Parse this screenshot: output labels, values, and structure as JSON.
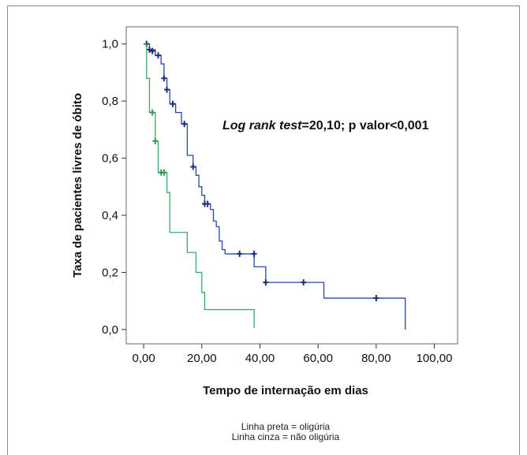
{
  "chart_data": {
    "type": "line",
    "title": "",
    "xlabel": "Tempo de internação em dias",
    "ylabel": "Taxa de pacientes livres de óbito",
    "xlim": [
      -6,
      108
    ],
    "ylim": [
      -0.05,
      1.06
    ],
    "x_ticks": [
      0,
      20,
      40,
      60,
      80,
      100
    ],
    "x_tick_labels": [
      "0,00",
      "20,00",
      "40,00",
      "60,00",
      "80,00",
      "100,00"
    ],
    "y_ticks": [
      0,
      0.2,
      0.4,
      0.6,
      0.8,
      1.0
    ],
    "y_tick_labels": [
      "0,0",
      "0,2",
      "0,4",
      "0,6",
      "0,8",
      "1,0"
    ],
    "grid": false,
    "annotation": {
      "text_italic": "Log rank test",
      "text_rest": "=20,10; p valor<0,001"
    },
    "legend_lines": [
      "Linha preta = oligúria",
      "Linha cinza = não oligúria"
    ],
    "colors": {
      "series_1": "#2a4aa0",
      "series_2": "#3aaa6a",
      "censor_1": "#1c2f7a",
      "censor_2": "#2e9a55"
    },
    "series": [
      {
        "steps": [
          [
            0,
            1.0
          ],
          [
            2,
            0.98
          ],
          [
            4,
            0.96
          ],
          [
            6,
            0.93
          ],
          [
            7,
            0.88
          ],
          [
            8,
            0.84
          ],
          [
            9,
            0.79
          ],
          [
            11,
            0.76
          ],
          [
            13,
            0.72
          ],
          [
            15,
            0.61
          ],
          [
            17,
            0.57
          ],
          [
            18,
            0.54
          ],
          [
            19,
            0.5
          ],
          [
            20,
            0.47
          ],
          [
            21,
            0.44
          ],
          [
            23,
            0.42
          ],
          [
            24,
            0.38
          ],
          [
            25,
            0.36
          ],
          [
            26,
            0.31
          ],
          [
            27,
            0.28
          ],
          [
            28,
            0.265
          ],
          [
            38,
            0.22
          ],
          [
            42,
            0.165
          ],
          [
            62,
            0.11
          ],
          [
            90,
            0.11
          ],
          [
            90,
            0.0
          ]
        ],
        "censored": [
          [
            1,
            1.0
          ],
          [
            2,
            0.98
          ],
          [
            3,
            0.975
          ],
          [
            5,
            0.96
          ],
          [
            7,
            0.88
          ],
          [
            8,
            0.84
          ],
          [
            10,
            0.79
          ],
          [
            14,
            0.72
          ],
          [
            17,
            0.57
          ],
          [
            21,
            0.44
          ],
          [
            22,
            0.44
          ],
          [
            33,
            0.265
          ],
          [
            38,
            0.265
          ],
          [
            42,
            0.165
          ],
          [
            55,
            0.165
          ],
          [
            80,
            0.11
          ]
        ]
      },
      {
        "steps": [
          [
            0,
            1.0
          ],
          [
            1,
            0.88
          ],
          [
            2,
            0.76
          ],
          [
            4,
            0.66
          ],
          [
            5,
            0.55
          ],
          [
            8,
            0.48
          ],
          [
            9,
            0.34
          ],
          [
            15,
            0.27
          ],
          [
            18,
            0.2
          ],
          [
            20,
            0.13
          ],
          [
            21,
            0.07
          ],
          [
            38,
            0.07
          ],
          [
            38,
            0.005
          ]
        ],
        "censored": [
          [
            3,
            0.76
          ],
          [
            4,
            0.66
          ],
          [
            6,
            0.55
          ],
          [
            7,
            0.55
          ]
        ]
      }
    ]
  }
}
